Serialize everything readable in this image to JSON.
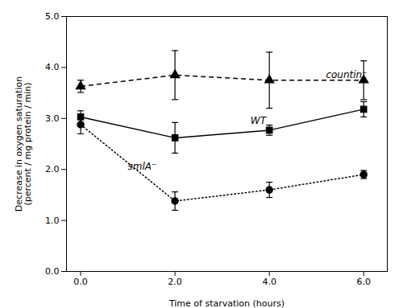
{
  "chart_data": {
    "type": "line",
    "xlabel": "Time of starvation (hours)",
    "ylabel": "Decrease in oxygen saturation\n(percent / mg protein / min)",
    "x": [
      0,
      2,
      4,
      6
    ],
    "xlim": [
      -0.3,
      6.5
    ],
    "xticks": [
      0,
      2,
      4,
      6
    ],
    "ylim": [
      0,
      5
    ],
    "yticks": [
      0,
      1,
      2,
      3,
      4,
      5
    ],
    "series": [
      {
        "color": "#000000",
        "marker": "triangle",
        "line_style": "dashed",
        "values": [
          3.63,
          3.85,
          3.75,
          3.75
        ],
        "errors": [
          0.12,
          0.48,
          0.55,
          0.38
        ]
      },
      {
        "color": "#000000",
        "marker": "square",
        "line_style": "solid",
        "values": [
          3.03,
          2.62,
          2.77,
          3.18
        ],
        "errors": [
          0.12,
          0.3,
          0.1,
          0.15
        ]
      },
      {
        "color": "#000000",
        "marker": "circle",
        "line_style": "dotted",
        "values": [
          2.88,
          1.38,
          1.6,
          1.9
        ],
        "errors": [
          0.18,
          0.18,
          0.15,
          0.08
        ]
      }
    ],
    "annotations": [
      {
        "text": "countin⁻",
        "x": 5.2,
        "y": 3.85
      },
      {
        "text": "WT",
        "x": 3.6,
        "y": 2.95
      },
      {
        "text": "smlA⁻",
        "x": 1.0,
        "y": 2.05
      }
    ]
  }
}
